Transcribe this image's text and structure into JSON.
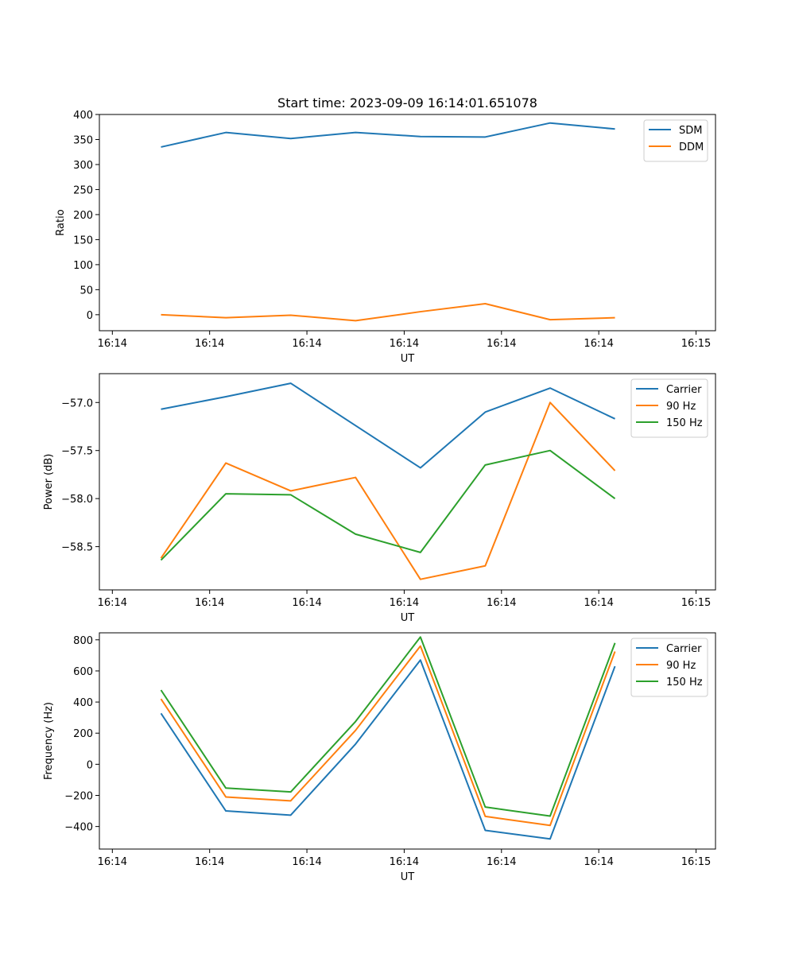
{
  "colors": {
    "series1": "#1f77b4",
    "series2": "#ff7f0e",
    "series3": "#2ca02c"
  },
  "chart_data": [
    {
      "type": "line",
      "title": "Start time: 2023-09-09 16:14:01.651078",
      "xlabel": "UT",
      "ylabel": "Ratio",
      "legend_position": "top-right",
      "grid": false,
      "xlim": [
        -0.2,
        9.3
      ],
      "ylim": [
        -32,
        400
      ],
      "x": [
        0.75,
        1.75,
        2.75,
        3.75,
        4.75,
        5.75,
        6.75,
        7.75
      ],
      "x_ticks": [
        0,
        1.5,
        3,
        4.5,
        6,
        7.5,
        9
      ],
      "x_tick_labels": [
        "16:14",
        "16:14",
        "16:14",
        "16:14",
        "16:14",
        "16:14",
        "16:15"
      ],
      "y_ticks": [
        0,
        50,
        100,
        150,
        200,
        250,
        300,
        350,
        400
      ],
      "y_tick_labels": [
        "0",
        "50",
        "100",
        "150",
        "200",
        "250",
        "300",
        "350",
        "400"
      ],
      "series": [
        {
          "name": "SDM",
          "color": "#1f77b4",
          "values": [
            335,
            364,
            352,
            364,
            356,
            355,
            383,
            371
          ]
        },
        {
          "name": "DDM",
          "color": "#ff7f0e",
          "values": [
            0,
            -6,
            -1,
            -12,
            6,
            22,
            -10,
            -6
          ]
        }
      ]
    },
    {
      "type": "line",
      "title": "",
      "xlabel": "UT",
      "ylabel": "Power (dB)",
      "legend_position": "top-right",
      "grid": false,
      "xlim": [
        -0.2,
        9.3
      ],
      "ylim": [
        -58.95,
        -56.7
      ],
      "x": [
        0.75,
        1.75,
        2.75,
        3.75,
        4.75,
        5.75,
        6.75,
        7.75
      ],
      "x_ticks": [
        0,
        1.5,
        3,
        4.5,
        6,
        7.5,
        9
      ],
      "x_tick_labels": [
        "16:14",
        "16:14",
        "16:14",
        "16:14",
        "16:14",
        "16:14",
        "16:15"
      ],
      "y_ticks": [
        -58.5,
        -58.0,
        -57.5,
        -57.0
      ],
      "y_tick_labels": [
        "−58.5",
        "−58.0",
        "−57.5",
        "−57.0"
      ],
      "series": [
        {
          "name": "Carrier",
          "color": "#1f77b4",
          "values": [
            -57.07,
            -56.94,
            -56.8,
            -57.24,
            -57.68,
            -57.1,
            -56.85,
            -57.17
          ]
        },
        {
          "name": "90 Hz",
          "color": "#ff7f0e",
          "values": [
            -58.62,
            -57.63,
            -57.92,
            -57.78,
            -58.84,
            -58.7,
            -57.0,
            -57.71
          ]
        },
        {
          "name": "150 Hz",
          "color": "#2ca02c",
          "values": [
            -58.64,
            -57.95,
            -57.96,
            -58.37,
            -58.56,
            -57.65,
            -57.5,
            -58.0
          ]
        }
      ]
    },
    {
      "type": "line",
      "title": "",
      "xlabel": "UT",
      "ylabel": "Frequency (Hz)",
      "legend_position": "top-right",
      "grid": false,
      "xlim": [
        -0.2,
        9.3
      ],
      "ylim": [
        -545,
        845
      ],
      "x": [
        0.75,
        1.75,
        2.75,
        3.75,
        4.75,
        5.75,
        6.75,
        7.75
      ],
      "x_ticks": [
        0,
        1.5,
        3,
        4.5,
        6,
        7.5,
        9
      ],
      "x_tick_labels": [
        "16:14",
        "16:14",
        "16:14",
        "16:14",
        "16:14",
        "16:14",
        "16:15"
      ],
      "y_ticks": [
        -400,
        -200,
        0,
        200,
        400,
        600,
        800
      ],
      "y_tick_labels": [
        "−400",
        "−200",
        "0",
        "200",
        "400",
        "600",
        "800"
      ],
      "series": [
        {
          "name": "Carrier",
          "color": "#1f77b4",
          "values": [
            327,
            -300,
            -327,
            130,
            670,
            -425,
            -480,
            630
          ]
        },
        {
          "name": "90 Hz",
          "color": "#ff7f0e",
          "values": [
            420,
            -210,
            -235,
            218,
            760,
            -335,
            -393,
            725
          ]
        },
        {
          "name": "150 Hz",
          "color": "#2ca02c",
          "values": [
            477,
            -153,
            -178,
            275,
            818,
            -275,
            -333,
            780
          ]
        }
      ]
    }
  ]
}
